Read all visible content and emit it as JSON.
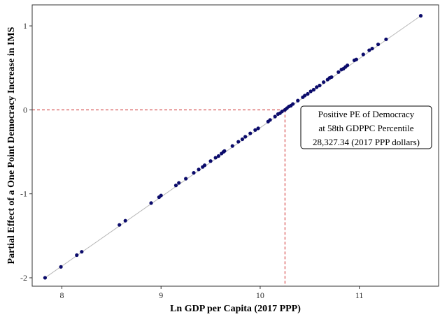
{
  "chart_data": {
    "type": "scatter",
    "xlabel": "Ln GDP per Capita (2017 PPP)",
    "ylabel": "Partial Effect of a One Point Democracy Increase in IMS",
    "xlim": [
      7.7,
      11.8
    ],
    "ylim": [
      -2.1,
      1.25
    ],
    "x_ticks": [
      8,
      9,
      10,
      11
    ],
    "y_ticks": [
      -2,
      -1,
      0,
      1
    ],
    "x_tick_labels": [
      "8",
      "9",
      "10",
      "11"
    ],
    "y_tick_labels": [
      "-2",
      "-1",
      "0",
      "1"
    ],
    "grid": false,
    "fit_line": {
      "x": [
        7.83,
        11.62
      ],
      "y": [
        -2.0,
        1.12
      ]
    },
    "reference_lines": {
      "x": 10.25,
      "y": 0
    },
    "annotation": {
      "lines": [
        "Positive PE of Democracy",
        "at 58th GDPPC Percentile",
        "28,327.34 (2017 PPP dollars)"
      ]
    },
    "points": {
      "x": [
        7.83,
        7.99,
        8.15,
        8.2,
        8.58,
        8.64,
        8.9,
        8.98,
        9.0,
        9.15,
        9.18,
        9.25,
        9.33,
        9.38,
        9.42,
        9.44,
        9.5,
        9.55,
        9.58,
        9.61,
        9.63,
        9.64,
        9.72,
        9.78,
        9.82,
        9.85,
        9.9,
        9.95,
        9.98,
        10.08,
        10.1,
        10.15,
        10.18,
        10.2,
        10.22,
        10.25,
        10.27,
        10.29,
        10.31,
        10.33,
        10.38,
        10.43,
        10.45,
        10.48,
        10.51,
        10.54,
        10.57,
        10.6,
        10.64,
        10.68,
        10.7,
        10.72,
        10.79,
        10.82,
        10.84,
        10.86,
        10.88,
        10.95,
        10.97,
        11.04,
        11.1,
        11.13,
        11.19,
        11.27,
        11.62
      ],
      "y": [
        -2.0,
        -1.87,
        -1.73,
        -1.69,
        -1.37,
        -1.32,
        -1.11,
        -1.04,
        -1.02,
        -0.9,
        -0.87,
        -0.82,
        -0.75,
        -0.71,
        -0.68,
        -0.66,
        -0.61,
        -0.57,
        -0.55,
        -0.52,
        -0.5,
        -0.49,
        -0.43,
        -0.38,
        -0.35,
        -0.32,
        -0.28,
        -0.24,
        -0.22,
        -0.14,
        -0.12,
        -0.08,
        -0.05,
        -0.04,
        -0.02,
        0.0,
        0.02,
        0.04,
        0.05,
        0.07,
        0.11,
        0.15,
        0.17,
        0.19,
        0.22,
        0.24,
        0.27,
        0.29,
        0.33,
        0.36,
        0.38,
        0.39,
        0.45,
        0.48,
        0.49,
        0.51,
        0.53,
        0.59,
        0.6,
        0.66,
        0.71,
        0.73,
        0.78,
        0.84,
        1.12
      ]
    },
    "colors": {
      "points": "#0b0b6b",
      "fit_line": "#b8b8b8",
      "reference": "#cc2222",
      "frame": "#333333"
    }
  }
}
